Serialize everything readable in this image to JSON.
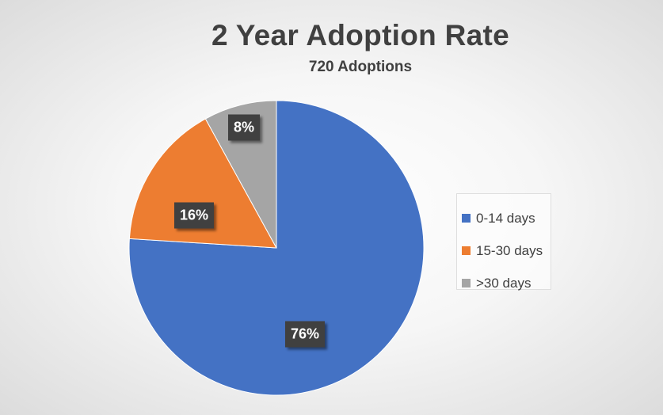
{
  "chart_data": {
    "type": "pie",
    "title": "2 Year Adoption Rate",
    "subtitle": "720 Adoptions",
    "categories": [
      "0-14 days",
      "15-30 days",
      ">30 days"
    ],
    "values": [
      76,
      16,
      8
    ],
    "data_labels": [
      "76%",
      "16%",
      "8%"
    ],
    "colors": [
      "#4472C4",
      "#ED7D31",
      "#A5A5A5"
    ],
    "start_angle_deg": 0,
    "direction": "clockwise",
    "legend_position": "right"
  }
}
